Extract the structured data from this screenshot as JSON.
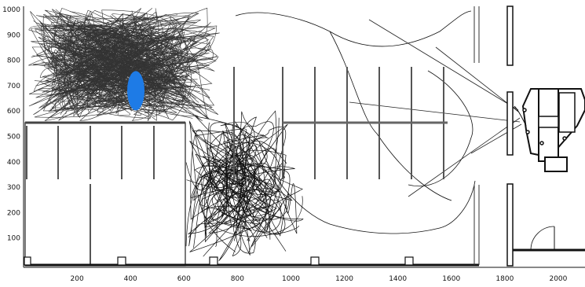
{
  "plot": {
    "x_ticks": [
      200,
      400,
      600,
      800,
      1000,
      1200,
      1400,
      1600,
      1800,
      2000
    ],
    "y_ticks": [
      100,
      200,
      300,
      400,
      500,
      600,
      700,
      800,
      900,
      1000
    ],
    "x_range": [
      0,
      2100
    ],
    "y_range": [
      0,
      1000
    ]
  },
  "marker": {
    "x": 420,
    "y": 680,
    "color": "#1e7be6"
  },
  "colors": {
    "lines": "#111111",
    "walls": "#222222",
    "shelves": "#555555"
  }
}
